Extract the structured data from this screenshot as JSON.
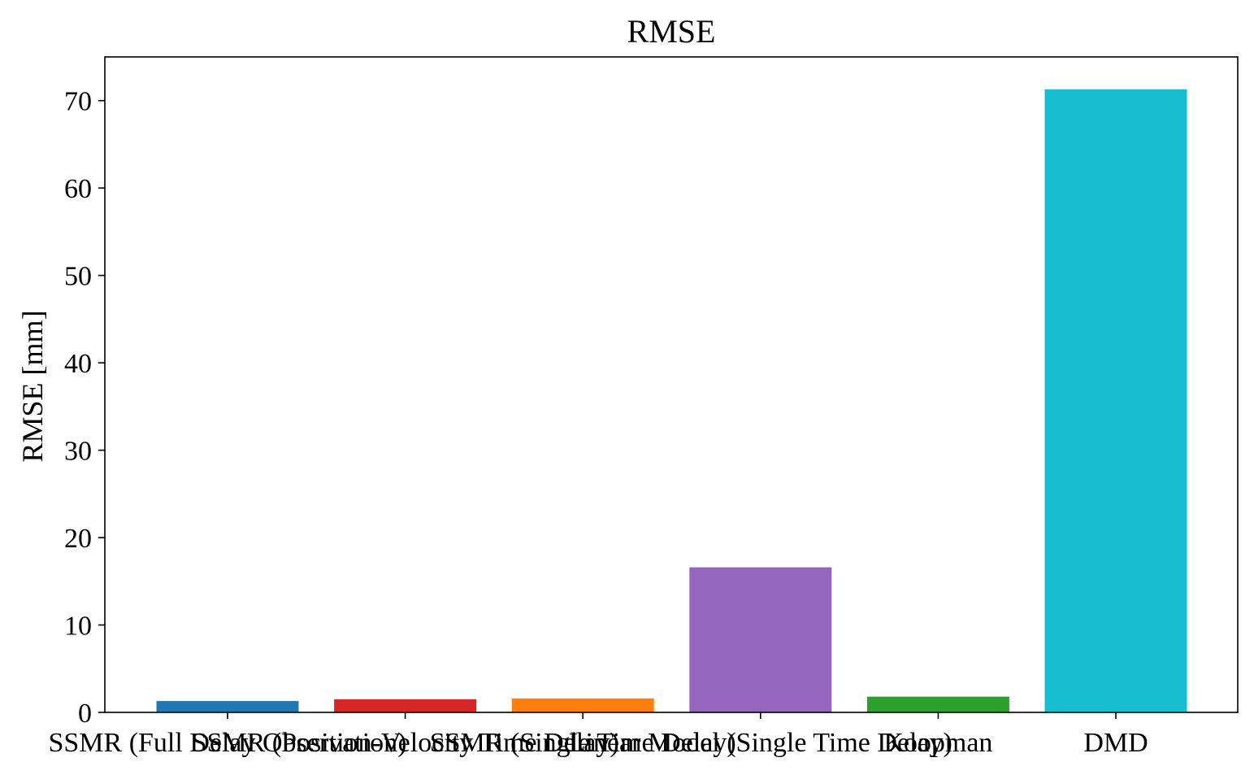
{
  "chart_data": {
    "type": "bar",
    "title": "RMSE",
    "xlabel": "",
    "ylabel": "RMSE [mm]",
    "ylim": [
      0,
      75
    ],
    "yticks": [
      0,
      10,
      20,
      30,
      40,
      50,
      60,
      70
    ],
    "grid": false,
    "categories": [
      "SSMR (Full Delay Observation)",
      "SSMR (Position-Velocity Time Delay)",
      "SSMR (Single Time Delay)",
      "Linear Model (Single Time Delay)",
      "Koopman",
      "DMD"
    ],
    "values": [
      1.3,
      1.5,
      1.6,
      16.6,
      1.8,
      71.3
    ],
    "colors": [
      "#1f77b4",
      "#d62728",
      "#ff7f0e",
      "#9467bd",
      "#2ca02c",
      "#17becf"
    ]
  }
}
